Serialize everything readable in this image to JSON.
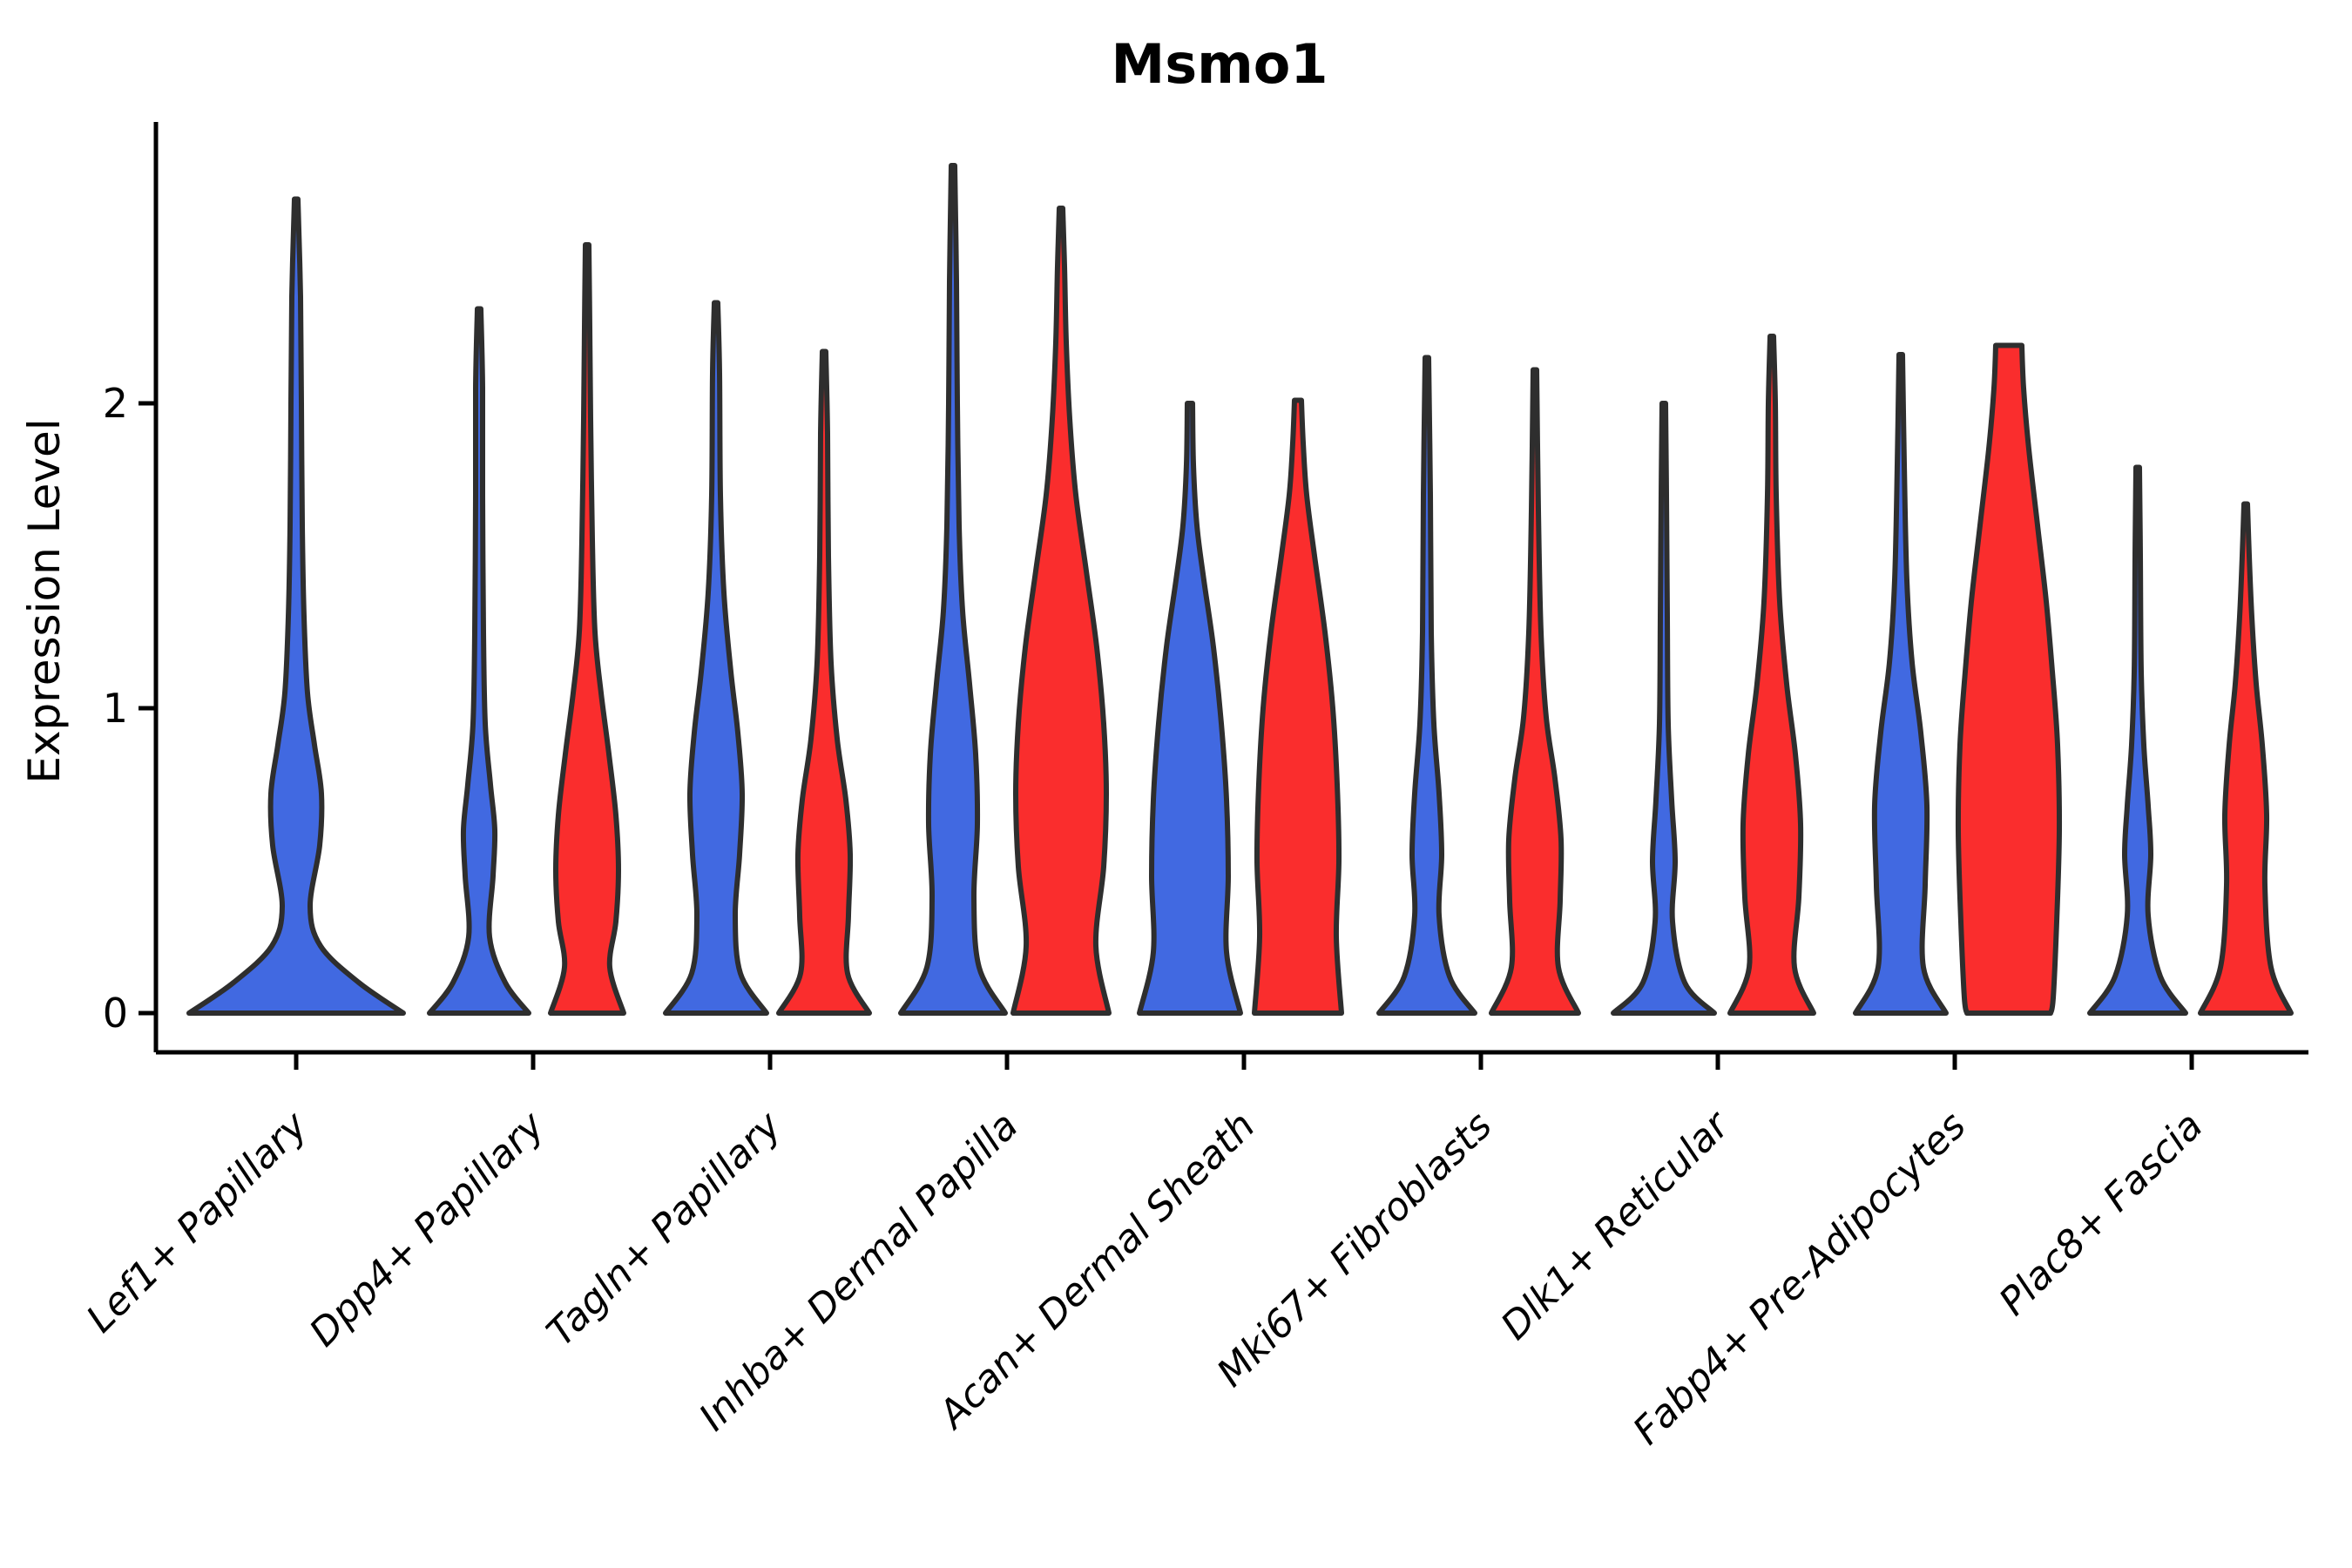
{
  "title": "Msmo1",
  "ylabel": "Expression Level",
  "colors": {
    "blue": "#4169E1",
    "red": "#FA2D2D",
    "violin_outline": "#2e2e2e",
    "axis": "#000000"
  },
  "chart_data": {
    "type": "violin",
    "title": "Msmo1",
    "xlabel": "",
    "ylabel": "Expression Level",
    "yticks": [
      0,
      1,
      2
    ],
    "ylim": [
      -0.13,
      2.92
    ],
    "grid": false,
    "legend": "none",
    "categories": [
      "Lef1+ Papillary",
      "Dpp4+ Papillary",
      "Tagln+ Papillary",
      "Inhba+ Dermal Papilla",
      "Acan+ Dermal Sheath",
      "Mki67+ Fibroblasts",
      "Dlk1+ Reticular",
      "Fabp4+ Pre-Adipocytes",
      "Plac8+ Fascia"
    ],
    "series": [
      {
        "name": "blue",
        "color": "#4169E1",
        "max_expression": [
          2.67,
          2.31,
          2.33,
          2.78,
          2.0,
          2.15,
          2.0,
          2.16,
          1.79
        ]
      },
      {
        "name": "red",
        "color": "#FA2D2D",
        "max_expression": [
          null,
          2.52,
          2.17,
          2.64,
          2.01,
          2.11,
          2.22,
          2.19,
          1.67
        ]
      }
    ],
    "violins": [
      {
        "cat": 0,
        "split": "blue",
        "offset": 0,
        "max": 2.67,
        "flat_top": false,
        "profile": [
          [
            0,
            123
          ],
          [
            0.1,
            72
          ],
          [
            0.22,
            28
          ],
          [
            0.35,
            16
          ],
          [
            0.55,
            27
          ],
          [
            0.72,
            29
          ],
          [
            0.88,
            21
          ],
          [
            1.05,
            13
          ],
          [
            1.3,
            9
          ],
          [
            1.6,
            7
          ],
          [
            2.0,
            6
          ],
          [
            2.35,
            5
          ],
          [
            2.67,
            2
          ]
        ]
      },
      {
        "cat": 1,
        "split": "blue",
        "offset": -62,
        "max": 2.31,
        "flat_top": false,
        "profile": [
          [
            0,
            57
          ],
          [
            0.1,
            30
          ],
          [
            0.25,
            12
          ],
          [
            0.45,
            16
          ],
          [
            0.6,
            18
          ],
          [
            0.75,
            13
          ],
          [
            0.95,
            7
          ],
          [
            1.25,
            5
          ],
          [
            1.7,
            4
          ],
          [
            2.05,
            4
          ],
          [
            2.31,
            2
          ]
        ]
      },
      {
        "cat": 1,
        "split": "red",
        "offset": 62,
        "max": 2.52,
        "flat_top": false,
        "profile": [
          [
            0,
            42
          ],
          [
            0.15,
            26
          ],
          [
            0.3,
            33
          ],
          [
            0.47,
            36
          ],
          [
            0.65,
            33
          ],
          [
            0.85,
            25
          ],
          [
            1.05,
            16
          ],
          [
            1.25,
            9
          ],
          [
            1.55,
            6
          ],
          [
            1.95,
            4
          ],
          [
            2.25,
            3
          ],
          [
            2.52,
            2
          ]
        ]
      },
      {
        "cat": 2,
        "split": "blue",
        "offset": -62,
        "max": 2.33,
        "flat_top": false,
        "profile": [
          [
            0,
            58
          ],
          [
            0.13,
            28
          ],
          [
            0.32,
            22
          ],
          [
            0.52,
            27
          ],
          [
            0.72,
            30
          ],
          [
            0.92,
            25
          ],
          [
            1.12,
            17
          ],
          [
            1.38,
            9
          ],
          [
            1.7,
            5
          ],
          [
            2.1,
            4
          ],
          [
            2.33,
            2
          ]
        ]
      },
      {
        "cat": 2,
        "split": "red",
        "offset": 62,
        "max": 2.17,
        "flat_top": false,
        "profile": [
          [
            0,
            52
          ],
          [
            0.13,
            27
          ],
          [
            0.32,
            28
          ],
          [
            0.52,
            30
          ],
          [
            0.7,
            25
          ],
          [
            0.9,
            15
          ],
          [
            1.15,
            8
          ],
          [
            1.5,
            5
          ],
          [
            1.9,
            4
          ],
          [
            2.17,
            2
          ]
        ]
      },
      {
        "cat": 3,
        "split": "blue",
        "offset": -62,
        "max": 2.78,
        "flat_top": false,
        "profile": [
          [
            0,
            60
          ],
          [
            0.15,
            30
          ],
          [
            0.38,
            24
          ],
          [
            0.62,
            28
          ],
          [
            0.85,
            26
          ],
          [
            1.08,
            19
          ],
          [
            1.32,
            11
          ],
          [
            1.6,
            7
          ],
          [
            2.0,
            5
          ],
          [
            2.4,
            4
          ],
          [
            2.78,
            2
          ]
        ]
      },
      {
        "cat": 3,
        "split": "red",
        "offset": 62,
        "max": 2.64,
        "flat_top": false,
        "profile": [
          [
            0,
            55
          ],
          [
            0.22,
            40
          ],
          [
            0.48,
            49
          ],
          [
            0.72,
            52
          ],
          [
            0.95,
            49
          ],
          [
            1.2,
            41
          ],
          [
            1.45,
            29
          ],
          [
            1.7,
            17
          ],
          [
            1.95,
            10
          ],
          [
            2.2,
            6
          ],
          [
            2.45,
            4
          ],
          [
            2.64,
            2
          ]
        ]
      },
      {
        "cat": 4,
        "split": "blue",
        "offset": -62,
        "max": 2.0,
        "flat_top": false,
        "profile": [
          [
            0,
            58
          ],
          [
            0.2,
            42
          ],
          [
            0.45,
            44
          ],
          [
            0.7,
            42
          ],
          [
            0.95,
            36
          ],
          [
            1.2,
            27
          ],
          [
            1.42,
            16
          ],
          [
            1.6,
            8
          ],
          [
            1.8,
            4
          ],
          [
            2.0,
            3
          ]
        ]
      },
      {
        "cat": 4,
        "split": "red",
        "offset": 62,
        "max": 2.01,
        "flat_top": false,
        "profile": [
          [
            0,
            50
          ],
          [
            0.25,
            44
          ],
          [
            0.5,
            47
          ],
          [
            0.75,
            45
          ],
          [
            1.0,
            40
          ],
          [
            1.25,
            31
          ],
          [
            1.5,
            19
          ],
          [
            1.7,
            10
          ],
          [
            1.87,
            6
          ],
          [
            2.01,
            4
          ]
        ]
      },
      {
        "cat": 5,
        "split": "blue",
        "offset": -62,
        "max": 2.15,
        "flat_top": false,
        "profile": [
          [
            0,
            55
          ],
          [
            0.12,
            26
          ],
          [
            0.32,
            14
          ],
          [
            0.52,
            17
          ],
          [
            0.72,
            14
          ],
          [
            0.95,
            8
          ],
          [
            1.25,
            5
          ],
          [
            1.7,
            4
          ],
          [
            2.15,
            2
          ]
        ]
      },
      {
        "cat": 5,
        "split": "red",
        "offset": 62,
        "max": 2.11,
        "flat_top": false,
        "profile": [
          [
            0,
            50
          ],
          [
            0.15,
            27
          ],
          [
            0.37,
            29
          ],
          [
            0.57,
            30
          ],
          [
            0.77,
            23
          ],
          [
            0.97,
            13
          ],
          [
            1.25,
            7
          ],
          [
            1.65,
            4
          ],
          [
            2.11,
            2
          ]
        ]
      },
      {
        "cat": 6,
        "split": "blue",
        "offset": -62,
        "max": 2.0,
        "flat_top": false,
        "profile": [
          [
            0,
            58
          ],
          [
            0.1,
            24
          ],
          [
            0.3,
            10
          ],
          [
            0.5,
            13
          ],
          [
            0.7,
            9
          ],
          [
            0.95,
            5
          ],
          [
            1.3,
            4
          ],
          [
            1.7,
            3
          ],
          [
            2.0,
            2
          ]
        ]
      },
      {
        "cat": 6,
        "split": "red",
        "offset": 62,
        "max": 2.22,
        "flat_top": false,
        "profile": [
          [
            0,
            48
          ],
          [
            0.15,
            26
          ],
          [
            0.38,
            31
          ],
          [
            0.62,
            33
          ],
          [
            0.85,
            27
          ],
          [
            1.08,
            17
          ],
          [
            1.35,
            9
          ],
          [
            1.7,
            5
          ],
          [
            2.0,
            4
          ],
          [
            2.22,
            2
          ]
        ]
      },
      {
        "cat": 7,
        "split": "blue",
        "offset": -62,
        "max": 2.16,
        "flat_top": false,
        "profile": [
          [
            0,
            52
          ],
          [
            0.15,
            26
          ],
          [
            0.42,
            28
          ],
          [
            0.68,
            30
          ],
          [
            0.92,
            23
          ],
          [
            1.15,
            13
          ],
          [
            1.42,
            7
          ],
          [
            1.8,
            4
          ],
          [
            2.16,
            2
          ]
        ]
      },
      {
        "cat": 7,
        "split": "red",
        "offset": 62,
        "max": 2.19,
        "flat_top": true,
        "profile": [
          [
            0,
            48
          ],
          [
            0.05,
            51
          ],
          [
            0.3,
            55
          ],
          [
            0.6,
            58
          ],
          [
            0.88,
            56
          ],
          [
            1.12,
            50
          ],
          [
            1.35,
            43
          ],
          [
            1.6,
            33
          ],
          [
            1.85,
            23
          ],
          [
            2.05,
            17
          ],
          [
            2.19,
            15
          ]
        ]
      },
      {
        "cat": 8,
        "split": "blue",
        "offset": -62,
        "max": 1.79,
        "flat_top": false,
        "profile": [
          [
            0,
            55
          ],
          [
            0.12,
            26
          ],
          [
            0.32,
            12
          ],
          [
            0.52,
            15
          ],
          [
            0.68,
            12
          ],
          [
            0.88,
            7
          ],
          [
            1.12,
            4
          ],
          [
            1.5,
            3
          ],
          [
            1.79,
            2
          ]
        ]
      },
      {
        "cat": 8,
        "split": "red",
        "offset": 62,
        "max": 1.67,
        "flat_top": false,
        "profile": [
          [
            0,
            52
          ],
          [
            0.15,
            29
          ],
          [
            0.42,
            22
          ],
          [
            0.65,
            24
          ],
          [
            0.88,
            19
          ],
          [
            1.08,
            12
          ],
          [
            1.3,
            7
          ],
          [
            1.5,
            4
          ],
          [
            1.67,
            2
          ]
        ]
      }
    ]
  }
}
